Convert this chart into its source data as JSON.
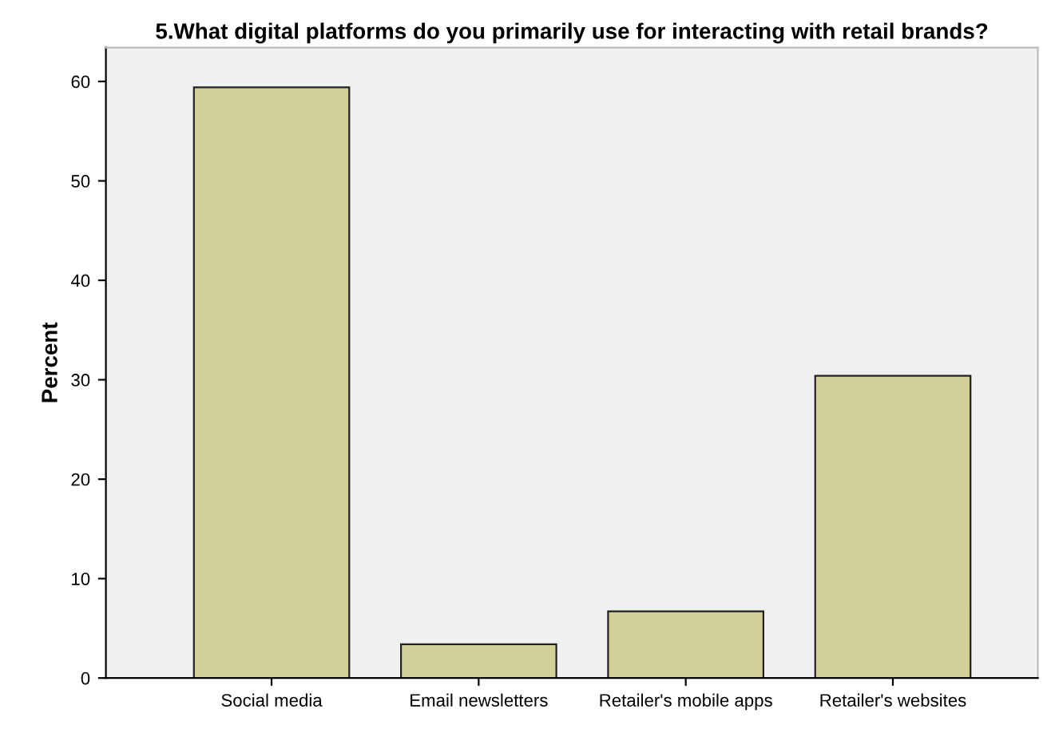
{
  "chart_data": {
    "type": "bar",
    "title": "5.What digital platforms do you primarily use for interacting with retail brands?",
    "ylabel": "Percent",
    "categories": [
      "Social media",
      "Email newsletters",
      "Retailer's mobile apps",
      "Retailer's websites"
    ],
    "values": [
      59.4,
      3.4,
      6.7,
      30.4
    ],
    "color": "#d3cf98",
    "ylim": [
      0,
      63.4
    ],
    "yticks": [
      0,
      10,
      20,
      30,
      40,
      50,
      60
    ],
    "grid": false
  }
}
